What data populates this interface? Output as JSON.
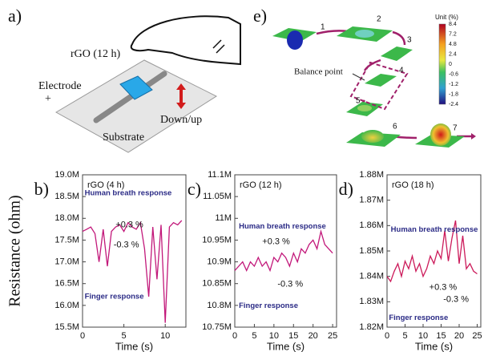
{
  "diagram_a": {
    "panel_label": "a)",
    "labels": [
      "rGO (12 h)",
      "Electrode",
      "+",
      "Down/up",
      "Substrate"
    ]
  },
  "diagram_e": {
    "panel_label": "e)",
    "steps": [
      "1",
      "2",
      "3",
      "4",
      "5",
      "6",
      "7"
    ],
    "balance": "Balance point",
    "unit": "Unit (%)",
    "scale_labels": [
      "8.4",
      "7.2",
      "4.8",
      "2.4",
      "0",
      "-0.6",
      "-1.2",
      "-1.8",
      "-2.4"
    ]
  },
  "chart_data": [
    {
      "type": "line",
      "panel_label": "b)",
      "title": "rGO (4 h)",
      "ylabel": "Resistance (ohm)",
      "xlabel": "Time (s)",
      "color": "#c2187a",
      "annotations": [
        "Human breath response",
        "+0.3 %",
        "-0.3 %",
        "Finger response"
      ],
      "xlim": [
        0,
        12.5
      ],
      "xticks": [
        0,
        5,
        10
      ],
      "ylim": [
        15500000,
        19000000
      ],
      "yticks": [
        {
          "value": 15500000,
          "label": "15.5M"
        },
        {
          "value": 16000000,
          "label": "16.0M"
        },
        {
          "value": 16500000,
          "label": "16.5M"
        },
        {
          "value": 17000000,
          "label": "17.0M"
        },
        {
          "value": 17500000,
          "label": "17.5M"
        },
        {
          "value": 18000000,
          "label": "18.0M"
        },
        {
          "value": 18500000,
          "label": "18.5M"
        },
        {
          "value": 19000000,
          "label": "19.0M"
        }
      ],
      "x": [
        0,
        0.5,
        1,
        1.5,
        2,
        2.5,
        3,
        3.5,
        4,
        4.5,
        5,
        5.5,
        6,
        6.5,
        7,
        7.5,
        8,
        8.5,
        9,
        9.5,
        10,
        10.5,
        11,
        11.5,
        12
      ],
      "values": [
        17700000,
        17750000,
        17800000,
        17650000,
        17000000,
        17750000,
        16900000,
        17700000,
        17800000,
        17850000,
        17700000,
        17900000,
        17800000,
        17750000,
        17900000,
        17300000,
        16200000,
        17800000,
        16600000,
        17850000,
        15600000,
        17800000,
        17900000,
        17850000,
        17950000
      ]
    },
    {
      "type": "line",
      "panel_label": "c)",
      "title": "rGO (12 h)",
      "xlabel": "Time (s)",
      "color": "#c2187a",
      "annotations": [
        "Human breath response",
        "+0.3 %",
        "-0.3 %",
        "Finger response"
      ],
      "xlim": [
        0,
        26
      ],
      "xticks": [
        0,
        5,
        10,
        15,
        20,
        25
      ],
      "ylim": [
        10750000,
        11100000
      ],
      "yticks": [
        {
          "value": 10750000,
          "label": "10.75M"
        },
        {
          "value": 10800000,
          "label": "10.8M"
        },
        {
          "value": 10850000,
          "label": "10.85M"
        },
        {
          "value": 10900000,
          "label": "10.9M"
        },
        {
          "value": 10950000,
          "label": "10.95M"
        },
        {
          "value": 11000000,
          "label": "11M"
        },
        {
          "value": 11050000,
          "label": "11.05M"
        },
        {
          "value": 11100000,
          "label": "11.1M"
        }
      ],
      "x": [
        0,
        1,
        2,
        3,
        4,
        5,
        6,
        7,
        8,
        9,
        10,
        11,
        12,
        13,
        14,
        15,
        16,
        17,
        18,
        19,
        20,
        21,
        22,
        23,
        24,
        25
      ],
      "values": [
        10880000,
        10890000,
        10900000,
        10880000,
        10900000,
        10890000,
        10910000,
        10890000,
        10900000,
        10880000,
        10910000,
        10900000,
        10920000,
        10910000,
        10890000,
        10920000,
        10900000,
        10930000,
        10920000,
        10940000,
        10950000,
        10930000,
        10970000,
        10940000,
        10930000,
        10920000
      ]
    },
    {
      "type": "line",
      "panel_label": "d)",
      "title": "rGO (18 h)",
      "xlabel": "Time (s)",
      "color": "#cc1a5a",
      "annotations": [
        "Human breath response",
        "+0.3 %",
        "-0.3 %",
        "Finger response"
      ],
      "xlim": [
        0,
        26
      ],
      "xticks": [
        0,
        5,
        10,
        15,
        20,
        25
      ],
      "ylim": [
        1820000,
        1880000
      ],
      "yticks": [
        {
          "value": 1820000,
          "label": "1.82M"
        },
        {
          "value": 1830000,
          "label": "1.83M"
        },
        {
          "value": 1840000,
          "label": "1.84M"
        },
        {
          "value": 1850000,
          "label": "1.85M"
        },
        {
          "value": 1860000,
          "label": "1.86M"
        },
        {
          "value": 1870000,
          "label": "1.87M"
        },
        {
          "value": 1880000,
          "label": "1.88M"
        }
      ],
      "x": [
        0,
        1,
        2,
        3,
        4,
        5,
        6,
        7,
        8,
        9,
        10,
        11,
        12,
        13,
        14,
        15,
        16,
        17,
        18,
        19,
        20,
        21,
        22,
        23,
        24,
        25
      ],
      "values": [
        1840000,
        1838000,
        1842000,
        1845000,
        1840000,
        1846000,
        1843000,
        1848000,
        1842000,
        1845000,
        1840000,
        1843000,
        1848000,
        1845000,
        1850000,
        1847000,
        1858000,
        1846000,
        1855000,
        1862000,
        1845000,
        1856000,
        1843000,
        1845000,
        1842000,
        1841000
      ]
    }
  ]
}
